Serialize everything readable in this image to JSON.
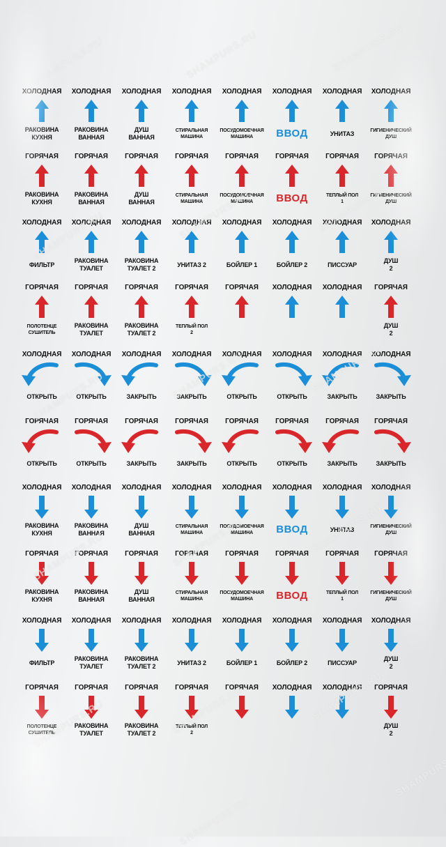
{
  "watermark": "SHAMPURS.RU",
  "colors": {
    "cold": "#1a8fd8",
    "hot": "#d8262a"
  },
  "rows": [
    [
      {
        "top": "ХОЛОДНАЯ",
        "icon": "arrow-up-icon",
        "color": "cold",
        "bottom": "РАКОВИНА\nКУХНЯ"
      },
      {
        "top": "ХОЛОДНАЯ",
        "icon": "arrow-up-icon",
        "color": "cold",
        "bottom": "РАКОВИНА\nВАННАЯ"
      },
      {
        "top": "ХОЛОДНАЯ",
        "icon": "arrow-up-icon",
        "color": "cold",
        "bottom": "ДУШ\nВАННАЯ"
      },
      {
        "top": "ХОЛОДНАЯ",
        "icon": "arrow-up-icon",
        "color": "cold",
        "bottom": "СТИРАЛЬНАЯ\nМАШИНА",
        "small": true
      },
      {
        "top": "ХОЛОДНАЯ",
        "icon": "arrow-up-icon",
        "color": "cold",
        "bottom": "ПОСУДОМОЕЧНАЯ\nМАШИНА",
        "small": true
      },
      {
        "top": "ХОЛОДНАЯ",
        "icon": "arrow-up-icon",
        "color": "cold",
        "bottom": "ВВОД",
        "vvod": true
      },
      {
        "top": "ХОЛОДНАЯ",
        "icon": "arrow-up-icon",
        "color": "cold",
        "bottom": "УНИТАЗ"
      },
      {
        "top": "ХОЛОДНАЯ",
        "icon": "arrow-up-icon",
        "color": "cold",
        "bottom": "ГИГИЕНИЧЕСКИЙ\nДУШ",
        "small": true
      }
    ],
    [
      {
        "top": "ГОРЯЧАЯ",
        "icon": "arrow-up-icon",
        "color": "hot",
        "bottom": "РАКОВИНА\nКУХНЯ"
      },
      {
        "top": "ГОРЯЧАЯ",
        "icon": "arrow-up-icon",
        "color": "hot",
        "bottom": "РАКОВИНА\nВАННАЯ"
      },
      {
        "top": "ГОРЯЧАЯ",
        "icon": "arrow-up-icon",
        "color": "hot",
        "bottom": "ДУШ\nВАННАЯ"
      },
      {
        "top": "ГОРЯЧАЯ",
        "icon": "arrow-up-icon",
        "color": "hot",
        "bottom": "СТИРАЛЬНАЯ\nМАШИНА",
        "small": true
      },
      {
        "top": "ГОРЯЧАЯ",
        "icon": "arrow-up-icon",
        "color": "hot",
        "bottom": "ПОСУДОМОЕЧНАЯ\nМАШИНА",
        "small": true
      },
      {
        "top": "ГОРЯЧАЯ",
        "icon": "arrow-up-icon",
        "color": "hot",
        "bottom": "ВВОД",
        "vvod": true
      },
      {
        "top": "ГОРЯЧАЯ",
        "icon": "arrow-up-icon",
        "color": "hot",
        "bottom": "ТЕПЛЫЙ ПОЛ\n1",
        "small": true
      },
      {
        "top": "ГОРЯЧАЯ",
        "icon": "arrow-up-icon",
        "color": "hot",
        "bottom": "ГИГИЕНИЧЕСКИЙ\nДУШ",
        "small": true
      }
    ],
    [
      {
        "top": "ХОЛОДНАЯ",
        "icon": "arrow-up-icon",
        "color": "cold",
        "bottom": "ФИЛЬТР"
      },
      {
        "top": "ХОЛОДНАЯ",
        "icon": "arrow-up-icon",
        "color": "cold",
        "bottom": "РАКОВИНА\nТУАЛЕТ"
      },
      {
        "top": "ХОЛОДНАЯ",
        "icon": "arrow-up-icon",
        "color": "cold",
        "bottom": "РАКОВИНА\nТУАЛЕТ 2"
      },
      {
        "top": "ХОЛОДНАЯ",
        "icon": "arrow-up-icon",
        "color": "cold",
        "bottom": "УНИТАЗ 2"
      },
      {
        "top": "ХОЛОДНАЯ",
        "icon": "arrow-up-icon",
        "color": "cold",
        "bottom": "БОЙЛЕР 1"
      },
      {
        "top": "ХОЛОДНАЯ",
        "icon": "arrow-up-icon",
        "color": "cold",
        "bottom": "БОЙЛЕР 2"
      },
      {
        "top": "ХОЛОДНАЯ",
        "icon": "arrow-up-icon",
        "color": "cold",
        "bottom": "ПИССУАР"
      },
      {
        "top": "ХОЛОДНАЯ",
        "icon": "arrow-up-icon",
        "color": "cold",
        "bottom": "ДУШ\n2"
      }
    ],
    [
      {
        "top": "ГОРЯЧАЯ",
        "icon": "arrow-up-icon",
        "color": "hot",
        "bottom": "ПОЛОТЕНЦЕ\nСУШИТЕЛЬ",
        "small": true
      },
      {
        "top": "ГОРЯЧАЯ",
        "icon": "arrow-up-icon",
        "color": "hot",
        "bottom": "РАКОВИНА\nТУАЛЕТ"
      },
      {
        "top": "ГОРЯЧАЯ",
        "icon": "arrow-up-icon",
        "color": "hot",
        "bottom": "РАКОВИНА\nТУАЛЕТ 2"
      },
      {
        "top": "ГОРЯЧАЯ",
        "icon": "arrow-up-icon",
        "color": "hot",
        "bottom": "ТЕПЛЫЙ ПОЛ\n2",
        "small": true
      },
      {
        "top": "ГОРЯЧАЯ",
        "icon": "arrow-up-icon",
        "color": "hot",
        "bottom": ""
      },
      {
        "top": "ХОЛОДНАЯ",
        "icon": "arrow-up-icon",
        "color": "cold",
        "bottom": ""
      },
      {
        "top": "ХОЛОДНАЯ",
        "icon": "arrow-up-icon",
        "color": "cold",
        "bottom": ""
      },
      {
        "top": "ГОРЯЧАЯ",
        "icon": "arrow-up-icon",
        "color": "hot",
        "bottom": "ДУШ\n2"
      }
    ],
    [
      {
        "top": "ХОЛОДНАЯ",
        "icon": "curved-arrow-left-icon",
        "color": "cold",
        "bottom": "ОТКРЫТЬ"
      },
      {
        "top": "ХОЛОДНАЯ",
        "icon": "curved-arrow-right-icon",
        "color": "cold",
        "bottom": "ОТКРЫТЬ"
      },
      {
        "top": "ХОЛОДНАЯ",
        "icon": "curved-arrow-left-icon",
        "color": "cold",
        "bottom": "ЗАКРЫТЬ"
      },
      {
        "top": "ХОЛОДНАЯ",
        "icon": "curved-arrow-right-icon",
        "color": "cold",
        "bottom": "ЗАКРЫТЬ"
      },
      {
        "top": "ХОЛОДНАЯ",
        "icon": "curved-arrow-left-icon",
        "color": "cold",
        "bottom": "ОТКРЫТЬ"
      },
      {
        "top": "ХОЛОДНАЯ",
        "icon": "curved-arrow-right-icon",
        "color": "cold",
        "bottom": "ОТКРЫТЬ"
      },
      {
        "top": "ХОЛОДНАЯ",
        "icon": "curved-arrow-left-icon",
        "color": "cold",
        "bottom": "ЗАКРЫТЬ"
      },
      {
        "top": "ХОЛОДНАЯ",
        "icon": "curved-arrow-right-icon",
        "color": "cold",
        "bottom": "ЗАКРЫТЬ"
      }
    ],
    [
      {
        "top": "ГОРЯЧАЯ",
        "icon": "curved-arrow-left-icon",
        "color": "hot",
        "bottom": "ОТКРЫТЬ"
      },
      {
        "top": "ГОРЯЧАЯ",
        "icon": "curved-arrow-right-icon",
        "color": "hot",
        "bottom": "ОТКРЫТЬ"
      },
      {
        "top": "ГОРЯЧАЯ",
        "icon": "curved-arrow-left-icon",
        "color": "hot",
        "bottom": "ЗАКРЫТЬ"
      },
      {
        "top": "ГОРЯЧАЯ",
        "icon": "curved-arrow-right-icon",
        "color": "hot",
        "bottom": "ЗАКРЫТЬ"
      },
      {
        "top": "ГОРЯЧАЯ",
        "icon": "curved-arrow-left-icon",
        "color": "hot",
        "bottom": "ОТКРЫТЬ"
      },
      {
        "top": "ГОРЯЧАЯ",
        "icon": "curved-arrow-right-icon",
        "color": "hot",
        "bottom": "ОТКРЫТЬ"
      },
      {
        "top": "ГОРЯЧАЯ",
        "icon": "curved-arrow-left-icon",
        "color": "hot",
        "bottom": "ЗАКРЫТЬ"
      },
      {
        "top": "ГОРЯЧАЯ",
        "icon": "curved-arrow-right-icon",
        "color": "hot",
        "bottom": "ЗАКРЫТЬ"
      }
    ],
    [
      {
        "top": "ХОЛОДНАЯ",
        "icon": "arrow-down-icon",
        "color": "cold",
        "bottom": "РАКОВИНА\nКУХНЯ"
      },
      {
        "top": "ХОЛОДНАЯ",
        "icon": "arrow-down-icon",
        "color": "cold",
        "bottom": "РАКОВИНА\nВАННАЯ"
      },
      {
        "top": "ХОЛОДНАЯ",
        "icon": "arrow-down-icon",
        "color": "cold",
        "bottom": "ДУШ\nВАННАЯ"
      },
      {
        "top": "ХОЛОДНАЯ",
        "icon": "arrow-down-icon",
        "color": "cold",
        "bottom": "СТИРАЛЬНАЯ\nМАШИНА",
        "small": true
      },
      {
        "top": "ХОЛОДНАЯ",
        "icon": "arrow-down-icon",
        "color": "cold",
        "bottom": "ПОСУДОМОЕЧНАЯ\nМАШИНА",
        "small": true
      },
      {
        "top": "ХОЛОДНАЯ",
        "icon": "arrow-down-icon",
        "color": "cold",
        "bottom": "ВВОД",
        "vvod": true
      },
      {
        "top": "ХОЛОДНАЯ",
        "icon": "arrow-down-icon",
        "color": "cold",
        "bottom": "УНИТАЗ"
      },
      {
        "top": "ХОЛОДНАЯ",
        "icon": "arrow-down-icon",
        "color": "cold",
        "bottom": "ГИГИЕНИЧЕСКИЙ\nДУШ",
        "small": true
      }
    ],
    [
      {
        "top": "ГОРЯЧАЯ",
        "icon": "arrow-down-icon",
        "color": "hot",
        "bottom": "РАКОВИНА\nКУХНЯ"
      },
      {
        "top": "ГОРЯЧАЯ",
        "icon": "arrow-down-icon",
        "color": "hot",
        "bottom": "РАКОВИНА\nВАННАЯ"
      },
      {
        "top": "ГОРЯЧАЯ",
        "icon": "arrow-down-icon",
        "color": "hot",
        "bottom": "ДУШ\nВАННАЯ"
      },
      {
        "top": "ГОРЯЧАЯ",
        "icon": "arrow-down-icon",
        "color": "hot",
        "bottom": "СТИРАЛЬНАЯ\nМАШИНА",
        "small": true
      },
      {
        "top": "ГОРЯЧАЯ",
        "icon": "arrow-down-icon",
        "color": "hot",
        "bottom": "ПОСУДОМОЕЧНАЯ\nМАШИНА",
        "small": true
      },
      {
        "top": "ГОРЯЧАЯ",
        "icon": "arrow-down-icon",
        "color": "hot",
        "bottom": "ВВОД",
        "vvod": true
      },
      {
        "top": "ГОРЯЧАЯ",
        "icon": "arrow-down-icon",
        "color": "hot",
        "bottom": "ТЕПЛЫЙ ПОЛ\n1",
        "small": true
      },
      {
        "top": "ГОРЯЧАЯ",
        "icon": "arrow-down-icon",
        "color": "hot",
        "bottom": "ГИГИЕНИЧЕСКИЙ\nДУШ",
        "small": true
      }
    ],
    [
      {
        "top": "ХОЛОДНАЯ",
        "icon": "arrow-down-icon",
        "color": "cold",
        "bottom": "ФИЛЬТР"
      },
      {
        "top": "ХОЛОДНАЯ",
        "icon": "arrow-down-icon",
        "color": "cold",
        "bottom": "РАКОВИНА\nТУАЛЕТ"
      },
      {
        "top": "ХОЛОДНАЯ",
        "icon": "arrow-down-icon",
        "color": "cold",
        "bottom": "РАКОВИНА\nТУАЛЕТ 2"
      },
      {
        "top": "ХОЛОДНАЯ",
        "icon": "arrow-down-icon",
        "color": "cold",
        "bottom": "УНИТАЗ 2"
      },
      {
        "top": "ХОЛОДНАЯ",
        "icon": "arrow-down-icon",
        "color": "cold",
        "bottom": "БОЙЛЕР 1"
      },
      {
        "top": "ХОЛОДНАЯ",
        "icon": "arrow-down-icon",
        "color": "cold",
        "bottom": "БОЙЛЕР 2"
      },
      {
        "top": "ХОЛОДНАЯ",
        "icon": "arrow-down-icon",
        "color": "cold",
        "bottom": "ПИССУАР"
      },
      {
        "top": "ХОЛОДНАЯ",
        "icon": "arrow-down-icon",
        "color": "cold",
        "bottom": "ДУШ\n2"
      }
    ],
    [
      {
        "top": "ГОРЯЧАЯ",
        "icon": "arrow-down-icon",
        "color": "hot",
        "bottom": "ПОЛОТЕНЦЕ\nСУШИТЕЛЬ",
        "small": true
      },
      {
        "top": "ГОРЯЧАЯ",
        "icon": "arrow-down-icon",
        "color": "hot",
        "bottom": "РАКОВИНА\nТУАЛЕТ"
      },
      {
        "top": "ГОРЯЧАЯ",
        "icon": "arrow-down-icon",
        "color": "hot",
        "bottom": "РАКОВИНА\nТУАЛЕТ 2"
      },
      {
        "top": "ГОРЯЧАЯ",
        "icon": "arrow-down-icon",
        "color": "hot",
        "bottom": "ТЕПЛЫЙ ПОЛ\n2",
        "small": true
      },
      {
        "top": "ГОРЯЧАЯ",
        "icon": "arrow-down-icon",
        "color": "hot",
        "bottom": ""
      },
      {
        "top": "ХОЛОДНАЯ",
        "icon": "arrow-down-icon",
        "color": "cold",
        "bottom": ""
      },
      {
        "top": "ХОЛОДНАЯ",
        "icon": "arrow-down-icon",
        "color": "cold",
        "bottom": ""
      },
      {
        "top": "ГОРЯЧАЯ",
        "icon": "arrow-down-icon",
        "color": "hot",
        "bottom": "ДУШ\n2"
      }
    ]
  ]
}
